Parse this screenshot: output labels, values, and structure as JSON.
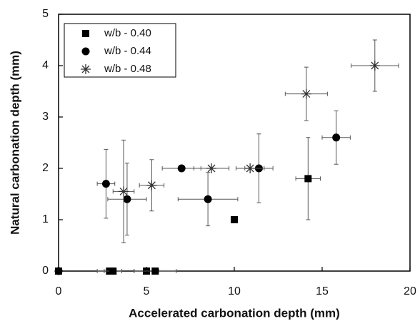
{
  "chart_data": {
    "type": "scatter",
    "x_label": "Accelerated carbonation depth (mm)",
    "y_label": "Natural carbonation depth (mm)",
    "xlim": [
      0,
      20
    ],
    "ylim": [
      0,
      5
    ],
    "xticks": [
      0,
      5,
      10,
      15,
      20
    ],
    "yticks": [
      0,
      1,
      2,
      3,
      4,
      5
    ],
    "legend_position": "upper left",
    "series": [
      {
        "name": "w/b - 0.40",
        "color": "#000000",
        "marker": "square",
        "x": [
          0,
          2.9,
          3.1,
          5.0,
          5.5,
          10.0,
          14.2
        ],
        "y": [
          0,
          0,
          0,
          0,
          0,
          1.0,
          1.8
        ],
        "xerr": [
          null,
          0.7,
          0.5,
          0.7,
          1.2,
          null,
          0.7
        ],
        "yerr": [
          null,
          null,
          null,
          null,
          null,
          null,
          0.8
        ]
      },
      {
        "name": "w/b - 0.44",
        "color": "#000000",
        "marker": "circle",
        "x": [
          0,
          2.7,
          3.9,
          7.0,
          8.5,
          11.4,
          15.8
        ],
        "y": [
          0,
          1.7,
          1.4,
          2.0,
          1.4,
          2.0,
          2.6
        ],
        "xerr": [
          null,
          0.5,
          1.1,
          1.1,
          1.7,
          0.8,
          0.8
        ],
        "yerr": [
          null,
          0.67,
          0.7,
          null,
          0.52,
          0.67,
          0.52
        ]
      },
      {
        "name": "w/b - 0.48",
        "color": "#333333",
        "marker": "star",
        "x": [
          3.7,
          5.3,
          8.7,
          10.9,
          14.1,
          18.0
        ],
        "y": [
          1.55,
          1.67,
          2.0,
          2.0,
          3.45,
          4.0
        ],
        "xerr": [
          0.6,
          0.7,
          1.0,
          0.8,
          1.2,
          1.35
        ],
        "yerr": [
          1.0,
          0.5,
          null,
          null,
          0.52,
          0.5
        ]
      }
    ]
  }
}
